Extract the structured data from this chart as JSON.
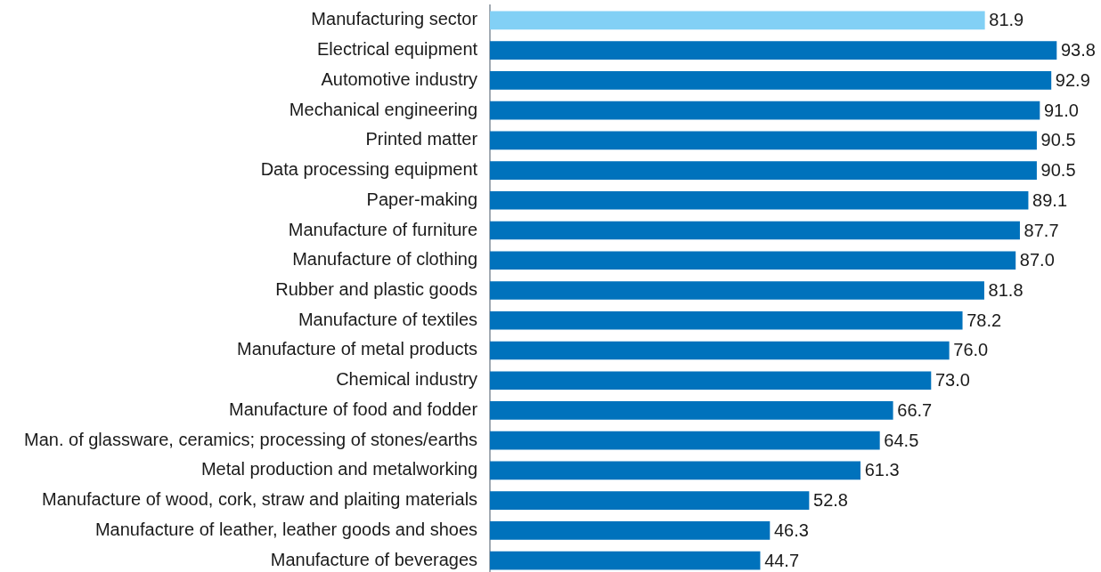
{
  "chart_data": {
    "type": "bar",
    "orientation": "horizontal",
    "categories": [
      "Manufacturing sector",
      "Electrical equipment",
      "Automotive industry",
      "Mechanical engineering",
      "Printed matter",
      "Data processing equipment",
      "Paper-making",
      "Manufacture of furniture",
      "Manufacture of clothing",
      "Rubber and plastic goods",
      "Manufacture of textiles",
      "Manufacture of metal products",
      "Chemical industry",
      "Manufacture of food and fodder",
      "Man. of glassware, ceramics; processing of stones/earths",
      "Metal production and metalworking",
      "Manufacture of wood, cork, straw and plaiting materials",
      "Manufacture of leather, leather goods and shoes",
      "Manufacture of beverages"
    ],
    "values": [
      81.9,
      93.8,
      92.9,
      91.0,
      90.5,
      90.5,
      89.1,
      87.7,
      87.0,
      81.8,
      78.2,
      76.0,
      73.0,
      66.7,
      64.5,
      61.3,
      52.8,
      46.3,
      44.7
    ],
    "value_labels": [
      "81.9",
      "93.8",
      "92.9",
      "91.0",
      "90.5",
      "90.5",
      "89.1",
      "87.7",
      "87.0",
      "81.8",
      "78.2",
      "76.0",
      "73.0",
      "66.7",
      "64.5",
      "61.3",
      "52.8",
      "46.3",
      "44.7"
    ],
    "colors": [
      "#82d0f5",
      "#0072bc",
      "#0072bc",
      "#0072bc",
      "#0072bc",
      "#0072bc",
      "#0072bc",
      "#0072bc",
      "#0072bc",
      "#0072bc",
      "#0072bc",
      "#0072bc",
      "#0072bc",
      "#0072bc",
      "#0072bc",
      "#0072bc",
      "#0072bc",
      "#0072bc",
      "#0072bc"
    ]
  }
}
